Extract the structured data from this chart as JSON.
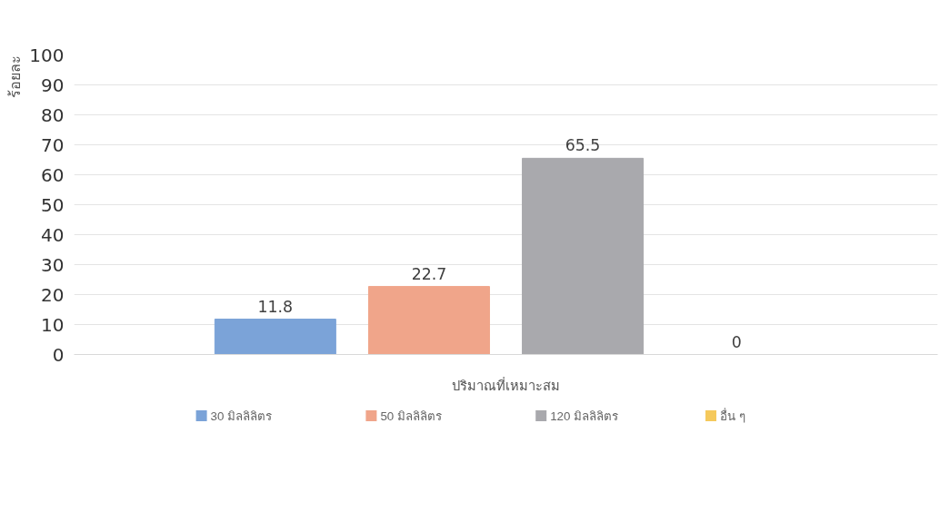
{
  "chart_data": {
    "type": "bar",
    "ylabel": "ร้อยละ",
    "categories": [
      "ปริมาณที่เหมาะสม"
    ],
    "series": [
      {
        "name": "30 มิลลิลิตร",
        "color": "#7ba3d8",
        "values": [
          11.8
        ]
      },
      {
        "name": "50 มิลลิลิตร",
        "color": "#f0a58a",
        "values": [
          22.7
        ]
      },
      {
        "name": "120 มิลลิลิตร",
        "color": "#a9a9ad",
        "values": [
          65.5
        ]
      },
      {
        "name": "อื่น ๆ",
        "color": "#f5c95c",
        "values": [
          0
        ]
      }
    ],
    "ylim": [
      0,
      100
    ],
    "yticks": [
      0,
      10,
      20,
      30,
      40,
      50,
      60,
      70,
      80,
      90,
      100
    ],
    "grid": "y",
    "legend": "bottom",
    "data_labels": true
  }
}
